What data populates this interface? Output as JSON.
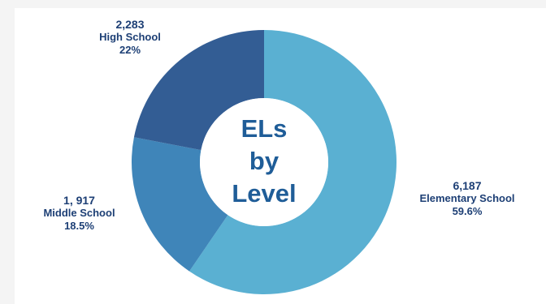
{
  "chart_data": {
    "type": "donut",
    "title": [
      "ELs",
      "by",
      "Level"
    ],
    "colors": {
      "elementary": "#5ab0d2",
      "middle": "#3f85b9",
      "high": "#335d94",
      "label": "#1d3f75",
      "title": "#1f5d98"
    },
    "slices": [
      {
        "key": "elementary",
        "name": "Elementary School",
        "value_text": "6,187",
        "value": 6187,
        "percent_text": "59.6%",
        "percent": 59.6
      },
      {
        "key": "middle",
        "name": "Middle School",
        "value_text": "1, 917",
        "value": 1917,
        "percent_text": "18.5%",
        "percent": 18.5
      },
      {
        "key": "high",
        "name": "High School",
        "value_text": "2,283",
        "value": 2283,
        "percent_text": "22%",
        "percent": 22
      }
    ]
  }
}
